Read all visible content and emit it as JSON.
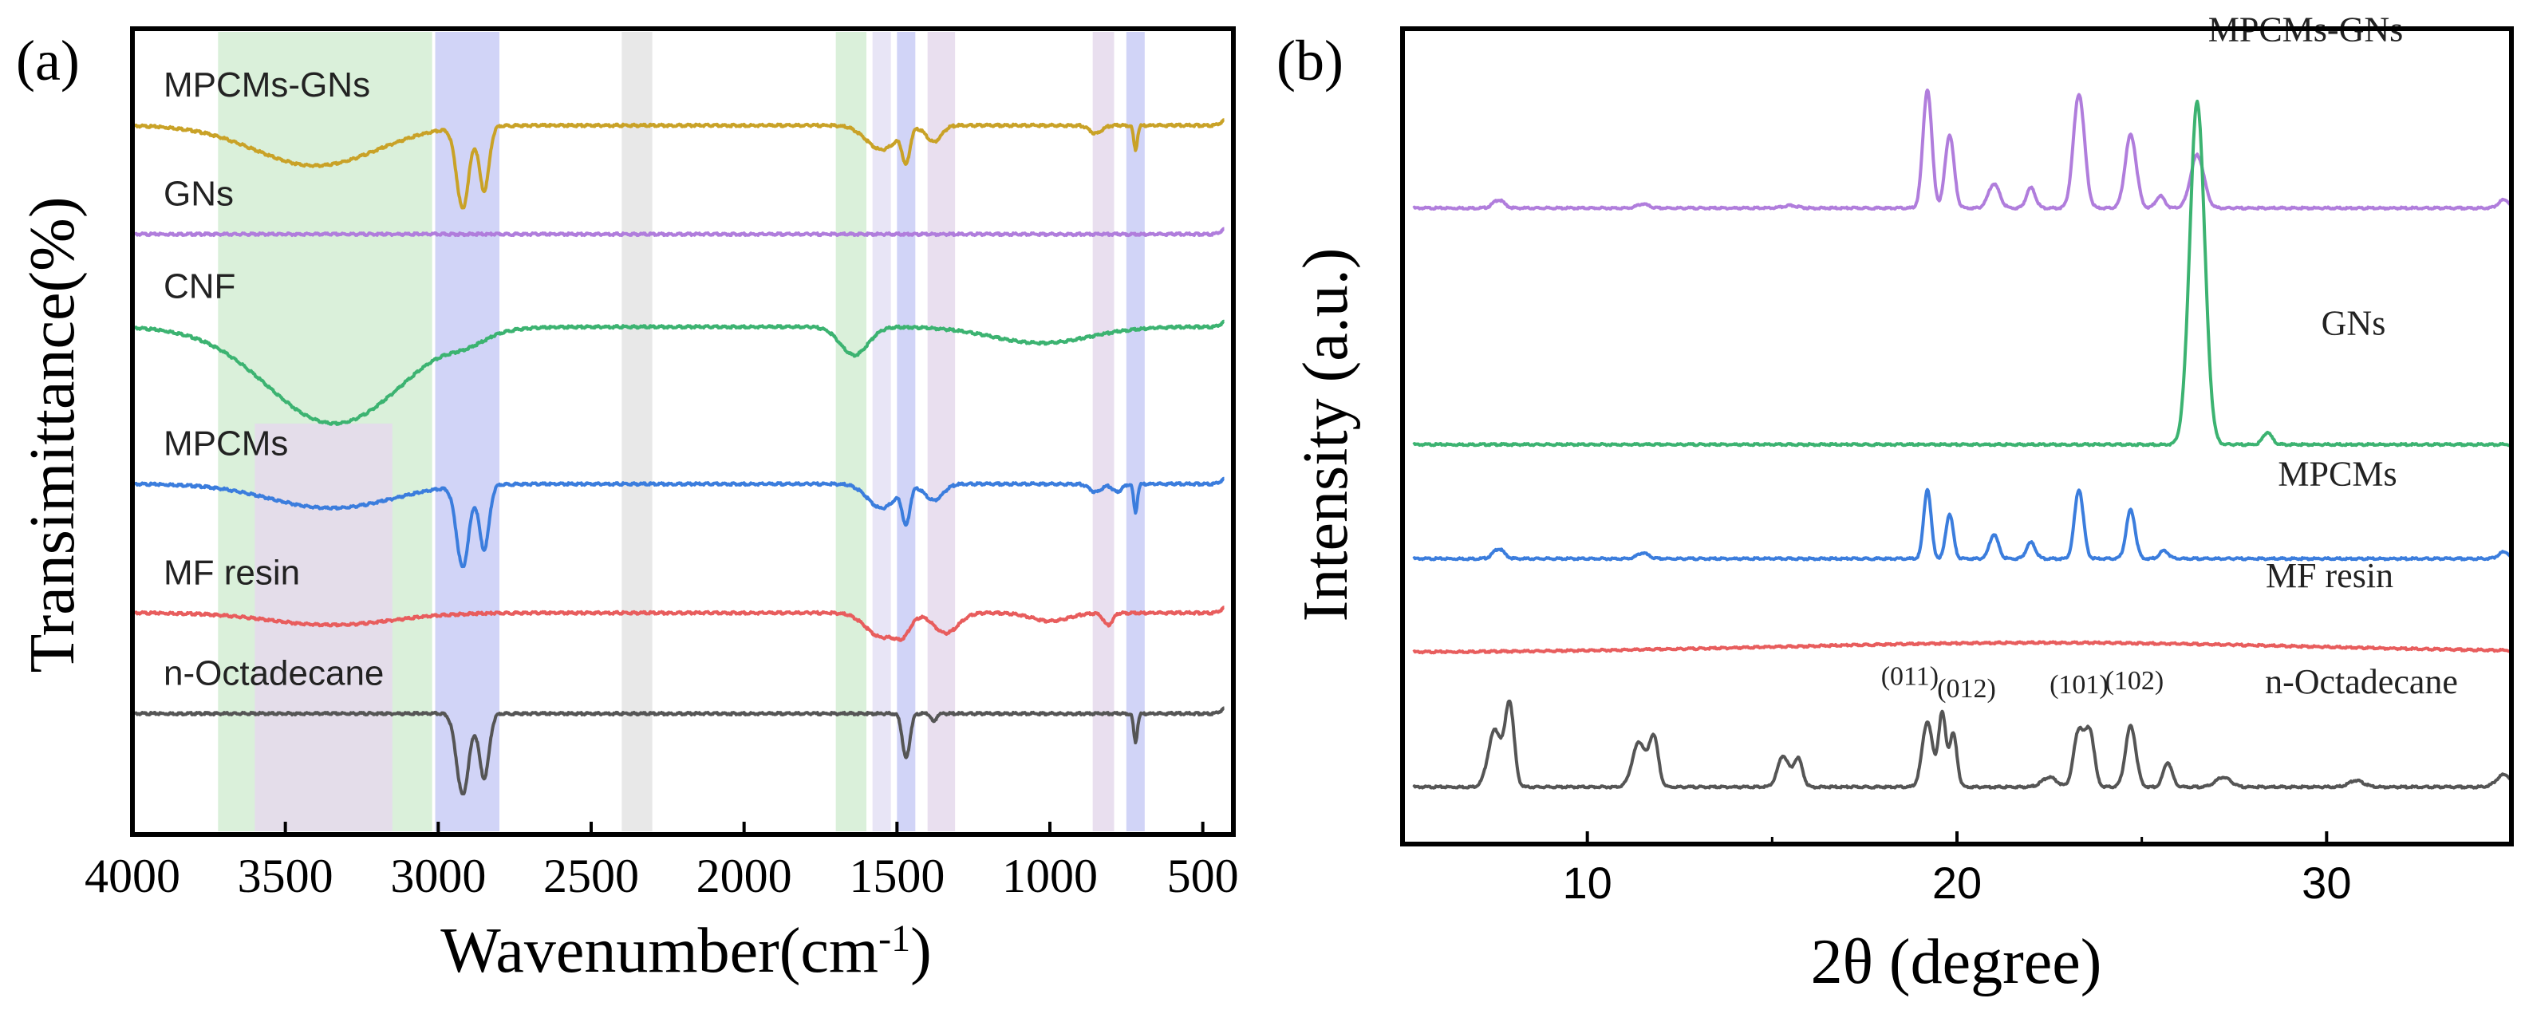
{
  "chart_data": [
    {
      "type": "line",
      "panel_label": "(a)",
      "title": "",
      "xlabel": "Wavenumber(cm",
      "xlabel_sup": "-1",
      "xlabel_tail": ")",
      "ylabel": "Transimittance(%)",
      "xlim": [
        4000,
        400
      ],
      "xticks": [
        4000,
        3500,
        3000,
        2500,
        2000,
        1500,
        1000,
        500
      ],
      "band_colors": {
        "green": "#d4edd4",
        "blue": "#c9cdf6",
        "gray": "#e4e4e4",
        "purple": "#e5d9ec",
        "lavender": "#e4e1f5"
      },
      "bands": [
        {
          "x1": 3720,
          "x2": 3020,
          "color": "green"
        },
        {
          "x1": 3010,
          "x2": 2800,
          "color": "blue"
        },
        {
          "x1": 2400,
          "x2": 2300,
          "color": "gray"
        },
        {
          "x1": 1700,
          "x2": 1600,
          "color": "green"
        },
        {
          "x1": 3600,
          "x2": 3150,
          "color": "purple"
        },
        {
          "x1": 1580,
          "x2": 1520,
          "color": "lavender"
        },
        {
          "x1": 1500,
          "x2": 1440,
          "color": "blue"
        },
        {
          "x1": 1400,
          "x2": 1310,
          "color": "purple"
        },
        {
          "x1": 860,
          "x2": 790,
          "color": "purple"
        },
        {
          "x1": 750,
          "x2": 690,
          "color": "blue"
        }
      ],
      "series": [
        {
          "name": "MPCMs-GNs",
          "color": "#c9a227",
          "baseline": 0.88,
          "features": [
            [
              3400,
              0.05,
              200
            ],
            [
              2920,
              0.1,
              20
            ],
            [
              2850,
              0.08,
              16
            ],
            [
              1470,
              0.04,
              12
            ],
            [
              1550,
              0.03,
              50
            ],
            [
              1380,
              0.02,
              25
            ],
            [
              720,
              0.03,
              6
            ],
            [
              850,
              0.01,
              20
            ]
          ],
          "x": [
            4000,
            3500,
            3400,
            3000,
            2920,
            2850,
            2500,
            2000,
            1470,
            1000,
            720,
            450
          ],
          "y": [
            0.88,
            0.85,
            0.83,
            0.87,
            0.78,
            0.8,
            0.875,
            0.875,
            0.84,
            0.85,
            0.85,
            0.88
          ]
        },
        {
          "name": "GNs",
          "color": "#b07ddc",
          "baseline": 0.745,
          "features": [],
          "x": [
            4000,
            3000,
            2000,
            1000,
            450
          ],
          "y": [
            0.745,
            0.745,
            0.745,
            0.745,
            0.745
          ]
        },
        {
          "name": "CNF",
          "color": "#3cb371",
          "baseline": 0.63,
          "features": [
            [
              3340,
              0.12,
              220
            ],
            [
              2900,
              0.01,
              60
            ],
            [
              1640,
              0.035,
              45
            ],
            [
              1030,
              0.02,
              160
            ]
          ],
          "x": [
            4000,
            3600,
            3340,
            3000,
            2500,
            2000,
            1640,
            1030,
            450
          ],
          "y": [
            0.63,
            0.57,
            0.51,
            0.61,
            0.625,
            0.63,
            0.595,
            0.61,
            0.63
          ]
        },
        {
          "name": "MPCMs",
          "color": "#3b7ddd",
          "baseline": 0.435,
          "features": [
            [
              3350,
              0.03,
              200
            ],
            [
              2920,
              0.1,
              20
            ],
            [
              2850,
              0.08,
              16
            ],
            [
              1470,
              0.045,
              12
            ],
            [
              1550,
              0.03,
              45
            ],
            [
              1380,
              0.02,
              30
            ],
            [
              720,
              0.035,
              6
            ],
            [
              850,
              0.01,
              20
            ],
            [
              780,
              0.01,
              15
            ]
          ],
          "x": [
            4000,
            3350,
            3000,
            2920,
            2850,
            2000,
            1470,
            1000,
            720,
            450
          ],
          "y": [
            0.435,
            0.405,
            0.43,
            0.335,
            0.355,
            0.435,
            0.39,
            0.43,
            0.4,
            0.435
          ]
        },
        {
          "name": "MF resin",
          "color": "#e85d5d",
          "baseline": 0.275,
          "features": [
            [
              3350,
              0.015,
              200
            ],
            [
              1550,
              0.03,
              50
            ],
            [
              1480,
              0.02,
              25
            ],
            [
              1340,
              0.025,
              40
            ],
            [
              1000,
              0.01,
              60
            ],
            [
              810,
              0.015,
              15
            ]
          ],
          "x": [
            4000,
            3350,
            3000,
            2000,
            1550,
            1340,
            1000,
            810,
            450
          ],
          "y": [
            0.275,
            0.26,
            0.27,
            0.275,
            0.245,
            0.25,
            0.265,
            0.26,
            0.275
          ]
        },
        {
          "name": "n-Octadecane",
          "color": "#555555",
          "baseline": 0.15,
          "features": [
            [
              2920,
              0.1,
              20
            ],
            [
              2850,
              0.08,
              16
            ],
            [
              1470,
              0.055,
              12
            ],
            [
              1380,
              0.01,
              8
            ],
            [
              720,
              0.035,
              6
            ]
          ],
          "x": [
            4000,
            3000,
            2920,
            2850,
            2000,
            1470,
            1000,
            720,
            450
          ],
          "y": [
            0.15,
            0.15,
            0.05,
            0.07,
            0.15,
            0.095,
            0.15,
            0.115,
            0.15
          ]
        }
      ]
    },
    {
      "type": "line",
      "panel_label": "(b)",
      "title": "",
      "xlabel": "2θ (degree)",
      "ylabel": "Intensity (a.u.)",
      "xlim": [
        5,
        35
      ],
      "xticks": [
        10,
        20,
        30
      ],
      "peak_annotations": [
        {
          "label": "(011)",
          "x": 19.2
        },
        {
          "label": "(012)",
          "x": 20.0
        },
        {
          "label": "(101)",
          "x": 23.3
        },
        {
          "label": "(102)",
          "x": 24.8
        }
      ],
      "series": [
        {
          "name": "MPCMs-GNs",
          "color": "#b07ddc",
          "baseline": 0.78,
          "peaks": [
            [
              7.6,
              0.01,
              0.15
            ],
            [
              11.5,
              0.005,
              0.15
            ],
            [
              15.5,
              0.003,
              0.2
            ],
            [
              19.2,
              0.145,
              0.12
            ],
            [
              19.8,
              0.09,
              0.12
            ],
            [
              21.0,
              0.03,
              0.15
            ],
            [
              22.0,
              0.025,
              0.12
            ],
            [
              23.3,
              0.14,
              0.15
            ],
            [
              24.7,
              0.09,
              0.15
            ],
            [
              25.5,
              0.015,
              0.12
            ],
            [
              26.5,
              0.065,
              0.18
            ],
            [
              34.8,
              0.01,
              0.15
            ]
          ],
          "x": [
            5,
            7.6,
            19.2,
            19.8,
            21.0,
            22.0,
            23.3,
            24.7,
            26.5,
            35
          ],
          "y": [
            0.78,
            0.79,
            0.925,
            0.87,
            0.81,
            0.805,
            0.92,
            0.87,
            0.845,
            0.78
          ]
        },
        {
          "name": "GNs",
          "color": "#3cb371",
          "baseline": 0.49,
          "peaks": [
            [
              26.5,
              0.42,
              0.2
            ],
            [
              28.4,
              0.015,
              0.12
            ]
          ],
          "x": [
            5,
            20,
            26.5,
            28.4,
            35
          ],
          "y": [
            0.49,
            0.495,
            0.91,
            0.505,
            0.49
          ]
        },
        {
          "name": "MPCMs",
          "color": "#3b7ddd",
          "baseline": 0.35,
          "peaks": [
            [
              7.6,
              0.012,
              0.15
            ],
            [
              11.5,
              0.007,
              0.15
            ],
            [
              19.2,
              0.085,
              0.1
            ],
            [
              19.8,
              0.055,
              0.1
            ],
            [
              21.0,
              0.03,
              0.12
            ],
            [
              22.0,
              0.02,
              0.12
            ],
            [
              23.3,
              0.085,
              0.12
            ],
            [
              24.7,
              0.06,
              0.12
            ],
            [
              25.6,
              0.01,
              0.12
            ],
            [
              34.8,
              0.008,
              0.15
            ]
          ],
          "x": [
            5,
            19.2,
            19.8,
            21.0,
            23.3,
            24.7,
            35
          ],
          "y": [
            0.35,
            0.435,
            0.405,
            0.38,
            0.435,
            0.41,
            0.35
          ]
        },
        {
          "name": "MF resin",
          "color": "#e85d5d",
          "baseline": 0.235,
          "broad": [
            22.5,
            0.012,
            7
          ],
          "x": [
            5,
            22.5,
            35
          ],
          "y": [
            0.235,
            0.247,
            0.235
          ]
        },
        {
          "name": "n-Octadecane",
          "color": "#555555",
          "baseline": 0.07,
          "peaks": [
            [
              7.5,
              0.07,
              0.18
            ],
            [
              7.9,
              0.1,
              0.12
            ],
            [
              11.4,
              0.055,
              0.18
            ],
            [
              11.8,
              0.06,
              0.12
            ],
            [
              15.3,
              0.038,
              0.15
            ],
            [
              15.7,
              0.035,
              0.12
            ],
            [
              19.2,
              0.08,
              0.14
            ],
            [
              19.6,
              0.09,
              0.1
            ],
            [
              19.9,
              0.065,
              0.1
            ],
            [
              22.5,
              0.012,
              0.2
            ],
            [
              23.3,
              0.07,
              0.14
            ],
            [
              23.6,
              0.065,
              0.12
            ],
            [
              24.7,
              0.075,
              0.14
            ],
            [
              25.7,
              0.03,
              0.12
            ],
            [
              27.2,
              0.012,
              0.2
            ],
            [
              30.8,
              0.008,
              0.2
            ],
            [
              34.8,
              0.015,
              0.2
            ]
          ],
          "x": [
            5,
            7.9,
            11.8,
            15.5,
            19.6,
            23.3,
            24.7,
            25.7,
            35
          ],
          "y": [
            0.07,
            0.17,
            0.13,
            0.105,
            0.16,
            0.14,
            0.145,
            0.1,
            0.07
          ]
        }
      ]
    }
  ]
}
